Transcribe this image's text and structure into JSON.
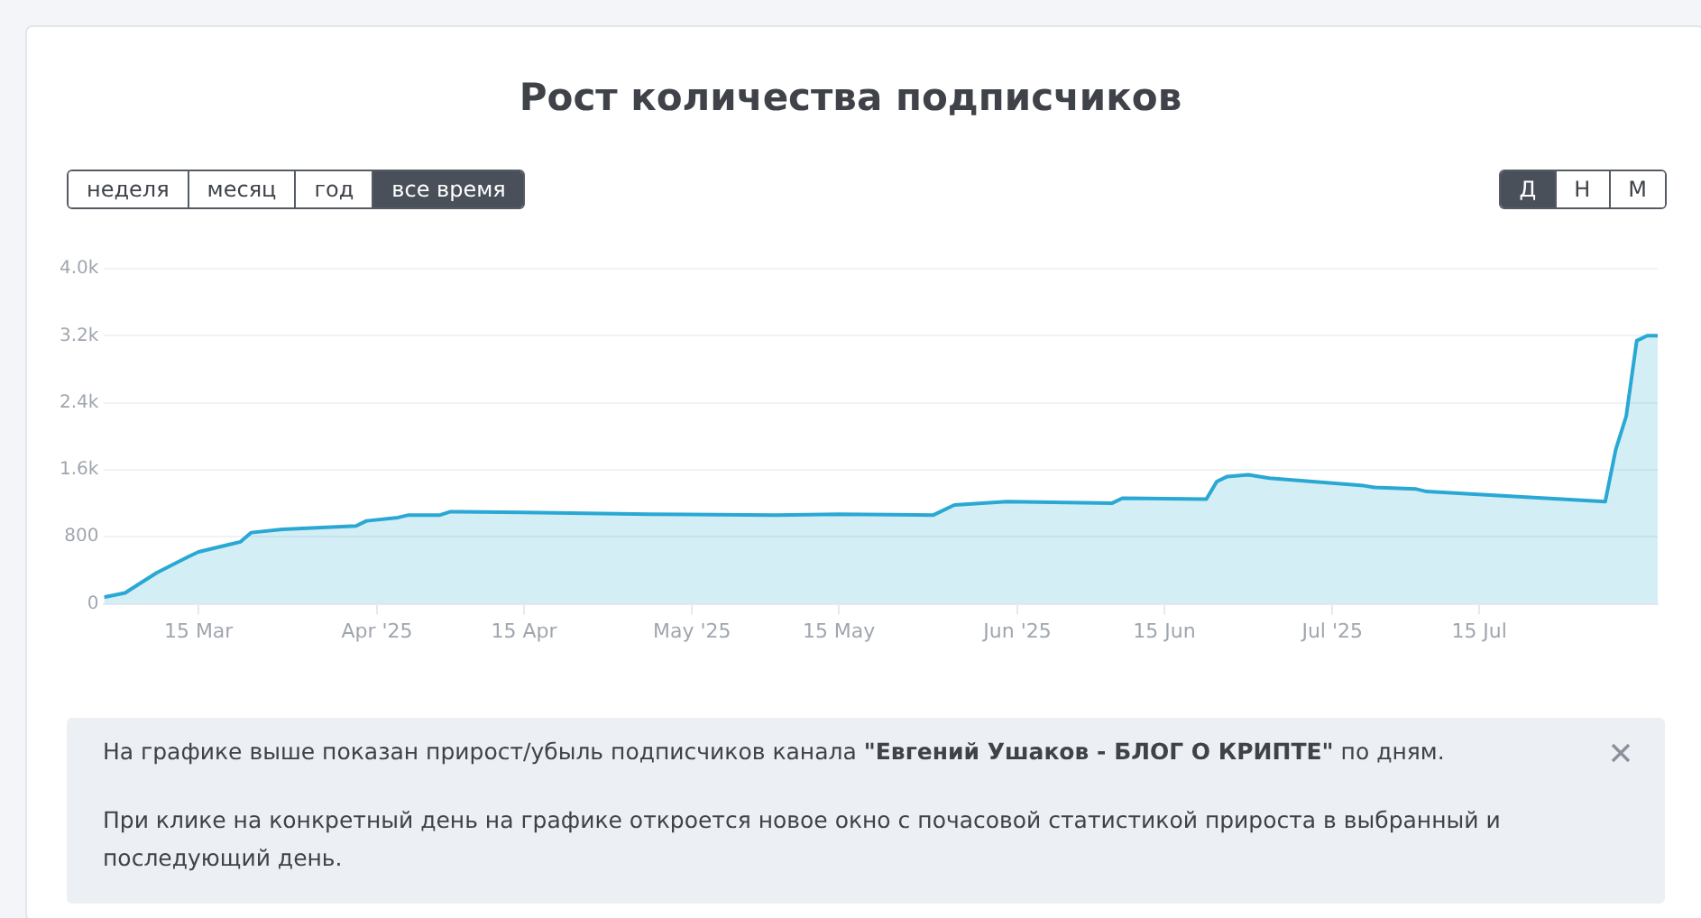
{
  "chart_data": {
    "type": "area",
    "title": "Рост количества подписчиков",
    "x": [
      "2025-03-06",
      "2025-03-08",
      "2025-03-11",
      "2025-03-14",
      "2025-03-15",
      "2025-03-19",
      "2025-03-20",
      "2025-03-23",
      "2025-03-30",
      "2025-03-31",
      "2025-04-03",
      "2025-04-04",
      "2025-04-07",
      "2025-04-08",
      "2025-04-15",
      "2025-04-27",
      "2025-05-09",
      "2025-05-15",
      "2025-05-24",
      "2025-05-26",
      "2025-05-31",
      "2025-06-10",
      "2025-06-11",
      "2025-06-19",
      "2025-06-20",
      "2025-06-21",
      "2025-06-23",
      "2025-06-25",
      "2025-07-04",
      "2025-07-05",
      "2025-07-09",
      "2025-07-10",
      "2025-07-27",
      "2025-07-28",
      "2025-07-29",
      "2025-07-30",
      "2025-07-31",
      "2025-08-01"
    ],
    "series": [
      {
        "color": "#2aa8d4",
        "values": [
          80,
          130,
          370,
          560,
          620,
          740,
          850,
          890,
          930,
          990,
          1030,
          1060,
          1060,
          1100,
          1090,
          1070,
          1060,
          1070,
          1060,
          1180,
          1220,
          1200,
          1260,
          1250,
          1460,
          1520,
          1540,
          1500,
          1410,
          1390,
          1370,
          1340,
          1220,
          1840,
          2240,
          3140,
          3200,
          3200
        ]
      }
    ],
    "xlim": [
      "2025-03-06",
      "2025-08-01"
    ],
    "xticks": [
      {
        "value": "2025-03-15",
        "label": "15 Mar"
      },
      {
        "value": "2025-04-01",
        "label": "Apr '25"
      },
      {
        "value": "2025-04-15",
        "label": "15 Apr"
      },
      {
        "value": "2025-05-01",
        "label": "May '25"
      },
      {
        "value": "2025-05-15",
        "label": "15 May"
      },
      {
        "value": "2025-06-01",
        "label": "Jun '25"
      },
      {
        "value": "2025-06-15",
        "label": "15 Jun"
      },
      {
        "value": "2025-07-01",
        "label": "Jul '25"
      },
      {
        "value": "2025-07-15",
        "label": "15 Jul"
      }
    ],
    "ylim": [
      0,
      4000
    ],
    "yticks": [
      0,
      {
        "value": 800,
        "label": "800"
      },
      {
        "value": 1600,
        "label": "1.6k"
      },
      {
        "value": 2400,
        "label": "2.4k"
      },
      {
        "value": 3200,
        "label": "3.2k"
      },
      {
        "value": 4000,
        "label": "4.0k"
      }
    ],
    "grid": "y",
    "legend": false,
    "marker": "none",
    "line_style": "solid",
    "annotations": [
      "неделя",
      "месяц",
      "год",
      "все время",
      "Д",
      "Н",
      "М",
      "На графике выше показан прирост/убыль подписчиков канала ",
      "\"Евгений Ушаков - БЛОГ О КРИПТЕ\"",
      " по дням.",
      "При клике на конкретный день на графике откроется новое окно с почасовой статистикой прироста в выбранный и последующий день."
    ]
  }
}
